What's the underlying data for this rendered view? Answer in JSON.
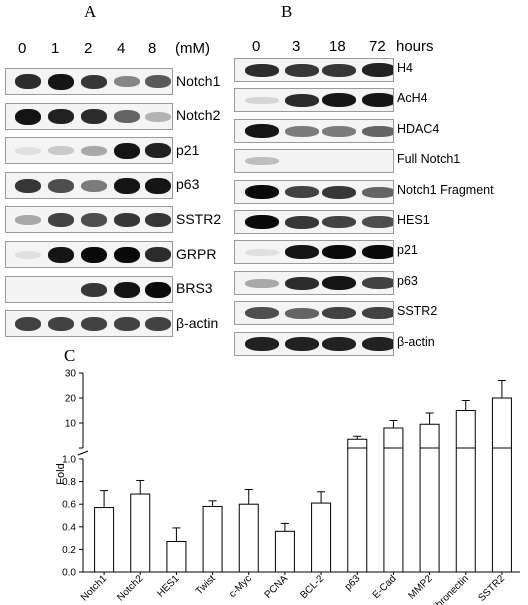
{
  "panel_a": {
    "letter": "A",
    "lanes": [
      "0",
      "1",
      "2",
      "4",
      "8"
    ],
    "unit": "(mM)",
    "rows": [
      {
        "label": "Notch1",
        "intensity": [
          0.85,
          0.95,
          0.8,
          0.45,
          0.65
        ]
      },
      {
        "label": "Notch2",
        "intensity": [
          0.95,
          0.9,
          0.85,
          0.6,
          0.25
        ]
      },
      {
        "label": "p21",
        "intensity": [
          0.05,
          0.15,
          0.3,
          0.95,
          0.9
        ]
      },
      {
        "label": "p63",
        "intensity": [
          0.8,
          0.7,
          0.5,
          0.95,
          0.95
        ]
      },
      {
        "label": "SSTR2",
        "intensity": [
          0.3,
          0.75,
          0.7,
          0.8,
          0.8
        ]
      },
      {
        "label": "GRPR",
        "intensity": [
          0.05,
          0.95,
          1.0,
          1.0,
          0.85
        ]
      },
      {
        "label": "BRS3",
        "intensity": [
          0.0,
          0.0,
          0.8,
          0.95,
          1.0
        ]
      },
      {
        "label": "β-actin",
        "intensity": [
          0.75,
          0.75,
          0.75,
          0.75,
          0.75
        ]
      }
    ]
  },
  "panel_b": {
    "letter": "B",
    "lanes": [
      "0",
      "3",
      "18",
      "72"
    ],
    "unit": "hours",
    "rows": [
      {
        "label": "H4",
        "intensity": [
          0.85,
          0.8,
          0.8,
          0.9
        ]
      },
      {
        "label": "AcH4",
        "intensity": [
          0.1,
          0.85,
          0.95,
          0.95
        ]
      },
      {
        "label": "HDAC4",
        "intensity": [
          0.95,
          0.5,
          0.5,
          0.6
        ]
      },
      {
        "label": "Full Notch1",
        "intensity": [
          0.2,
          0.0,
          0.0,
          0.0
        ]
      },
      {
        "label": "Notch1 Fragment",
        "intensity": [
          1.0,
          0.75,
          0.8,
          0.6
        ]
      },
      {
        "label": "HES1",
        "intensity": [
          1.0,
          0.8,
          0.75,
          0.7
        ]
      },
      {
        "label": "p21",
        "intensity": [
          0.05,
          0.95,
          1.0,
          1.0
        ]
      },
      {
        "label": "p63",
        "intensity": [
          0.3,
          0.85,
          0.95,
          0.75
        ]
      },
      {
        "label": "SSTR2",
        "intensity": [
          0.7,
          0.6,
          0.75,
          0.75
        ]
      },
      {
        "label": "β-actin",
        "intensity": [
          0.9,
          0.9,
          0.9,
          0.9
        ]
      }
    ]
  },
  "chart_data": {
    "type": "bar",
    "panel_letter": "C",
    "ylabel": "Fold",
    "categories": [
      "Notch1",
      "Notch2",
      "HES1",
      "Twist",
      "c-Myc",
      "PCNA",
      "BCL-2",
      "p63",
      "E-Cad",
      "MMP2",
      "Fibronectin",
      "SSTR2"
    ],
    "values": [
      0.57,
      0.69,
      0.27,
      0.58,
      0.6,
      0.36,
      0.61,
      3.5,
      8,
      9.5,
      15,
      20
    ],
    "errors": [
      0.15,
      0.12,
      0.12,
      0.05,
      0.13,
      0.07,
      0.1,
      1.2,
      3,
      4.5,
      4,
      7
    ],
    "lower_axis": {
      "ylim": [
        0,
        1.0
      ],
      "ticks": [
        "0.0",
        "0.2",
        "0.4",
        "0.6",
        "0.8",
        "1.0"
      ]
    },
    "upper_axis": {
      "ylim": [
        0,
        30
      ],
      "ticks": [
        "0",
        "10",
        "20",
        "30"
      ]
    },
    "grid": false,
    "legend": "none"
  }
}
